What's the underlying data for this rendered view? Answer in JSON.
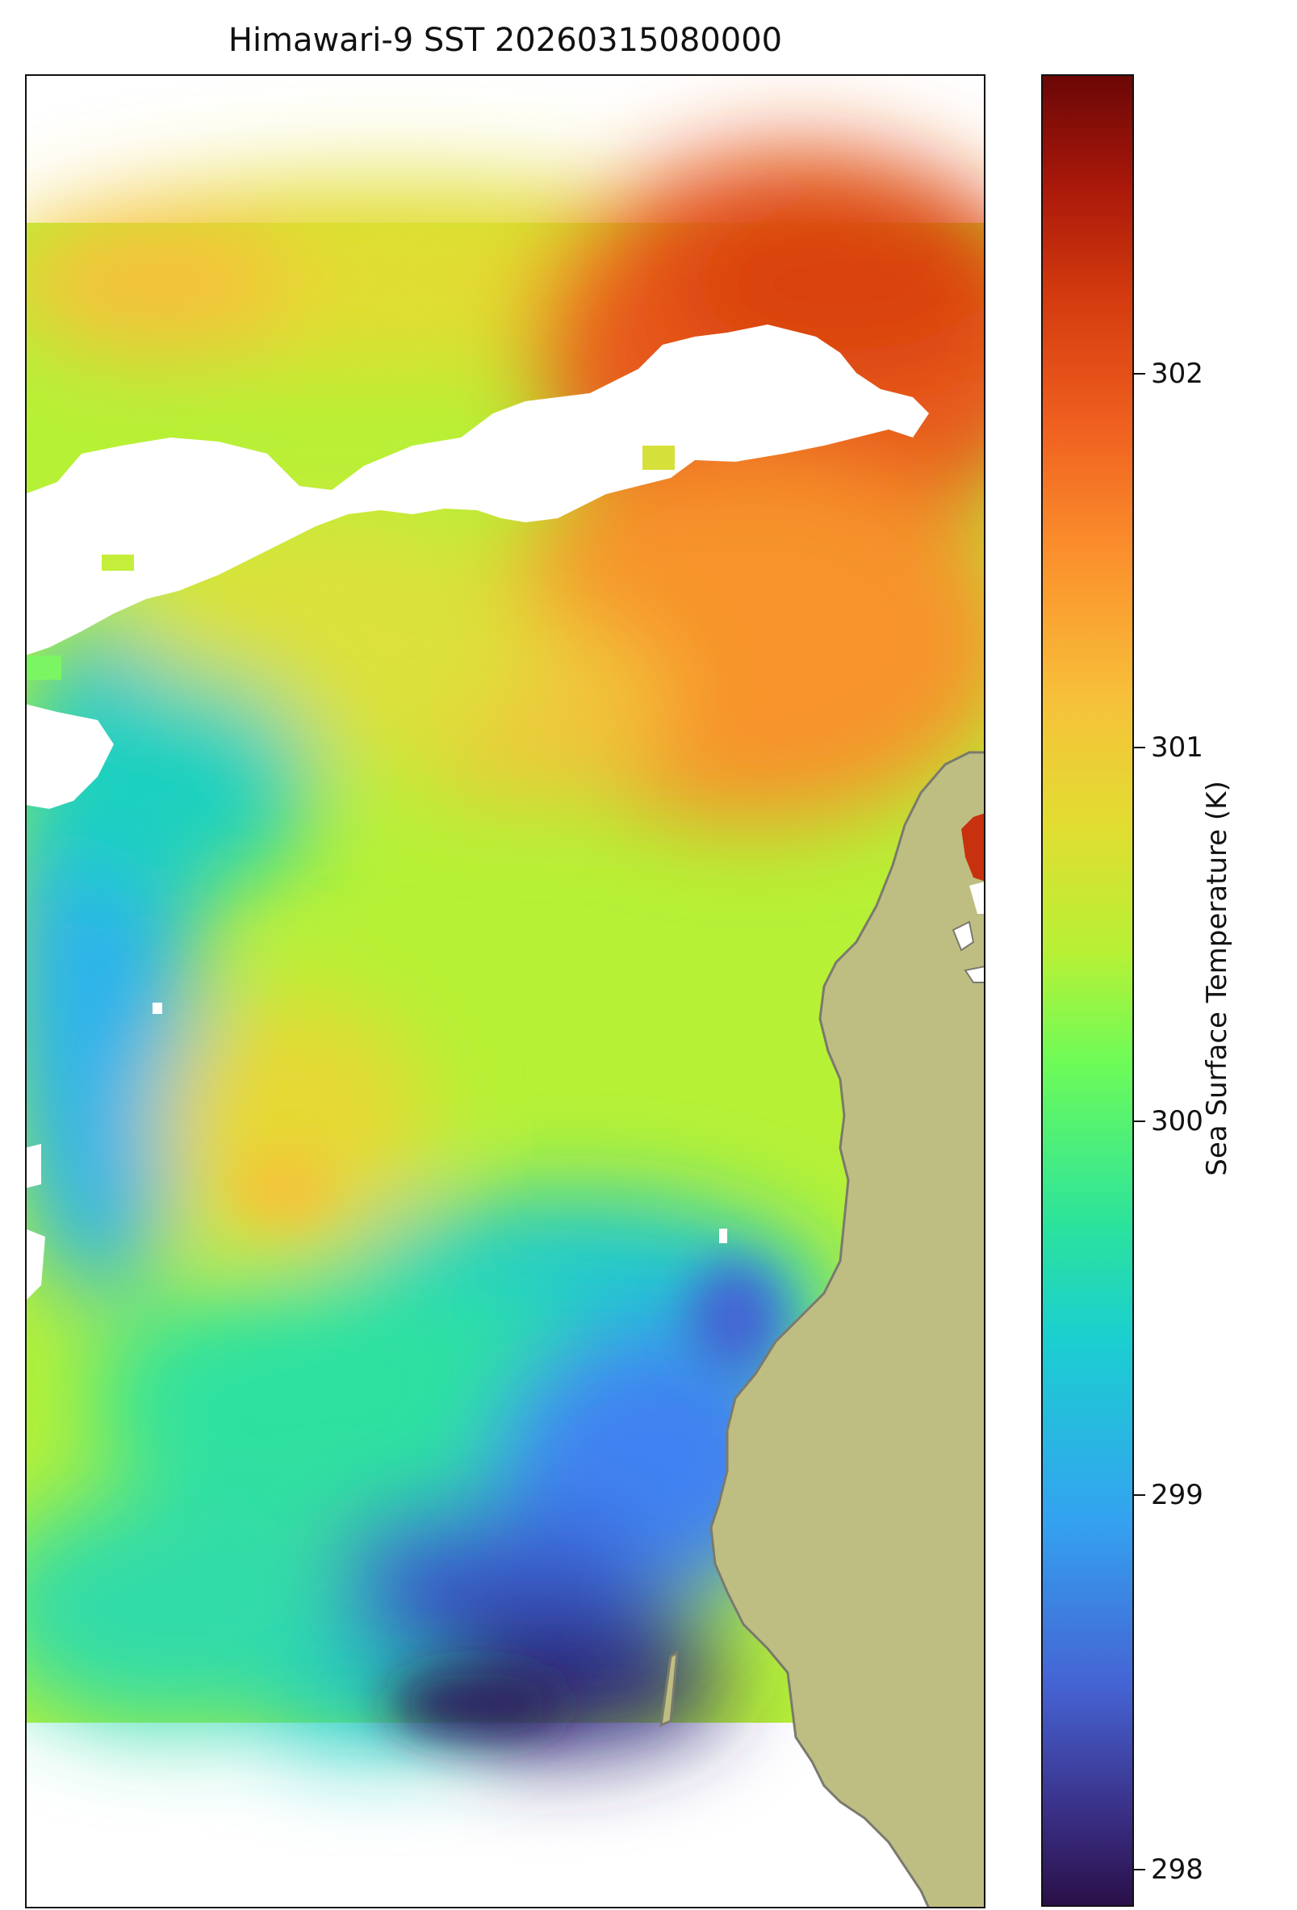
{
  "map": {
    "title": "Himawari-9 SST 20260315080000",
    "colors": {
      "land_fill": "#bfbe82",
      "coastline": "#7a7a6e",
      "no_data": "#ffffff",
      "frame": "#111111"
    }
  },
  "colorbar": {
    "label": "Sea Surface Temperature (K)",
    "range": [
      297.9,
      302.8
    ],
    "colormap": "turbo",
    "ticks": [
      {
        "value": 298,
        "label": "298"
      },
      {
        "value": 299,
        "label": "299"
      },
      {
        "value": 300,
        "label": "300"
      },
      {
        "value": 301,
        "label": "301"
      },
      {
        "value": 302,
        "label": "302"
      }
    ]
  }
}
